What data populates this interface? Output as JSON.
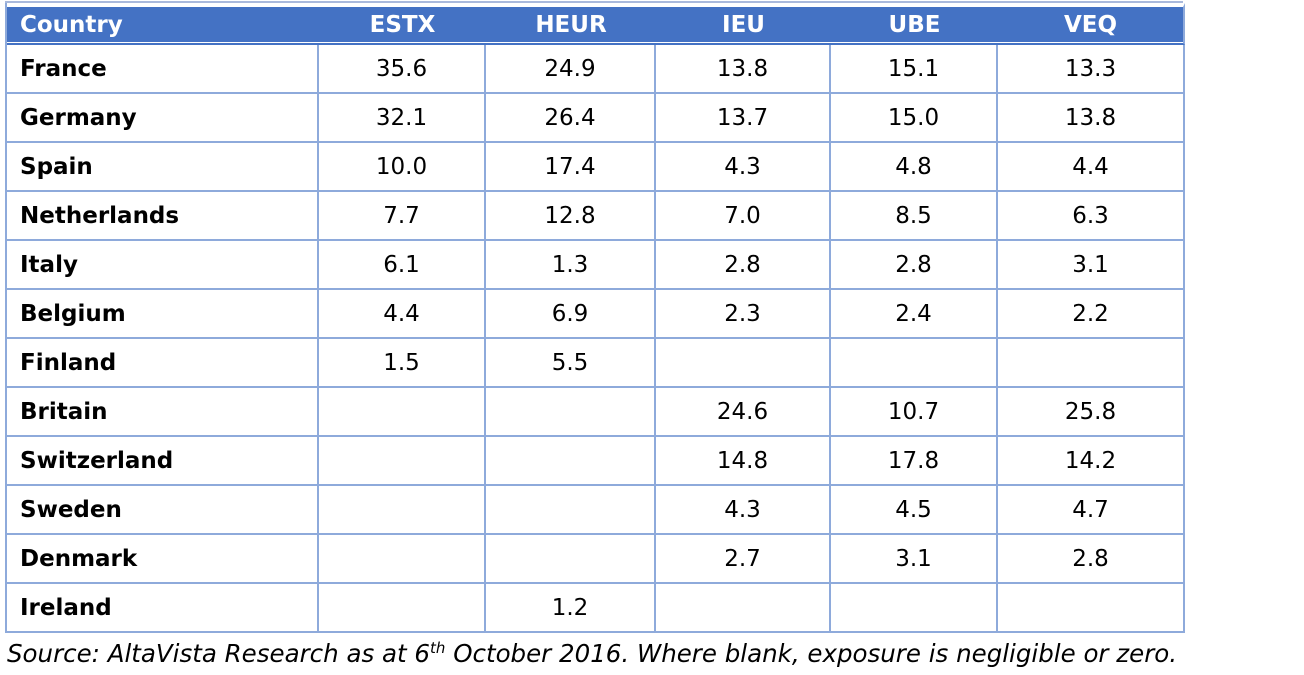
{
  "table": {
    "columns": [
      "Country",
      "ESTX",
      "HEUR",
      "IEU",
      "UBE",
      "VEQ"
    ],
    "rows": [
      {
        "country": "France",
        "values": [
          "35.6",
          "24.9",
          "13.8",
          "15.1",
          "13.3"
        ]
      },
      {
        "country": "Germany",
        "values": [
          "32.1",
          "26.4",
          "13.7",
          "15.0",
          "13.8"
        ]
      },
      {
        "country": "Spain",
        "values": [
          "10.0",
          "17.4",
          "4.3",
          "4.8",
          "4.4"
        ]
      },
      {
        "country": "Netherlands",
        "values": [
          "7.7",
          "12.8",
          "7.0",
          "8.5",
          "6.3"
        ]
      },
      {
        "country": "Italy",
        "values": [
          "6.1",
          "1.3",
          "2.8",
          "2.8",
          "3.1"
        ]
      },
      {
        "country": "Belgium",
        "values": [
          "4.4",
          "6.9",
          "2.3",
          "2.4",
          "2.2"
        ]
      },
      {
        "country": "Finland",
        "values": [
          "1.5",
          "5.5",
          "",
          "",
          ""
        ]
      },
      {
        "country": "Britain",
        "values": [
          "",
          "",
          "24.6",
          "10.7",
          "25.8"
        ]
      },
      {
        "country": "Switzerland",
        "values": [
          "",
          "",
          "14.8",
          "17.8",
          "14.2"
        ]
      },
      {
        "country": "Sweden",
        "values": [
          "",
          "",
          "4.3",
          "4.5",
          "4.7"
        ]
      },
      {
        "country": "Denmark",
        "values": [
          "",
          "",
          "2.7",
          "3.1",
          "2.8"
        ]
      },
      {
        "country": "Ireland",
        "values": [
          "",
          "1.2",
          "",
          "",
          ""
        ]
      }
    ]
  },
  "source_note": {
    "prefix": "Source: AltaVista Research as at 6",
    "superscript": "th",
    "suffix": " October 2016. Where blank, exposure is negligible or zero."
  },
  "colors": {
    "header_bg": "#4472C4",
    "header_text": "#FFFFFF",
    "grid_border": "#8EAADB",
    "header_rule": "#4472C4",
    "top_rule": "#A9B9DC",
    "body_text": "#000000"
  }
}
